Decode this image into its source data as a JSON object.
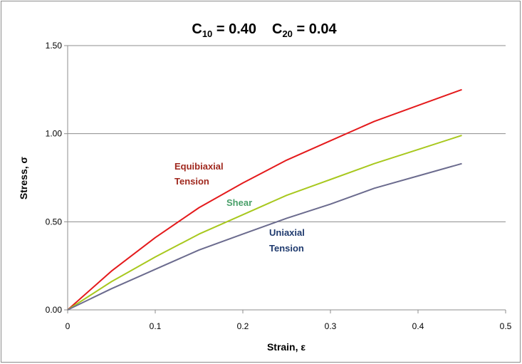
{
  "chart_data": {
    "type": "line",
    "title": {
      "c10_main": "C",
      "c10_sub": "10",
      "c10_value": " = 0.40",
      "c20_main": "C",
      "c20_sub": "20",
      "c20_value": " = 0.04"
    },
    "xlabel": "Strain, ε",
    "ylabel": "Stress, σ",
    "xlim": [
      0,
      0.5
    ],
    "ylim": [
      0,
      1.5
    ],
    "x_ticks": [
      "0",
      "0.1",
      "0.2",
      "0.3",
      "0.4",
      "0.5"
    ],
    "y_ticks": [
      "0.00",
      "0.50",
      "1.00",
      "1.50"
    ],
    "grid": "horizontal",
    "x": [
      0,
      0.05,
      0.1,
      0.15,
      0.2,
      0.25,
      0.3,
      0.35,
      0.4,
      0.45
    ],
    "series": [
      {
        "name": "Equibiaxial Tension",
        "color": "#e41a1c",
        "values": [
          0,
          0.22,
          0.41,
          0.58,
          0.72,
          0.85,
          0.96,
          1.07,
          1.16,
          1.25
        ]
      },
      {
        "name": "Shear",
        "color": "#a8c81e",
        "values": [
          0,
          0.16,
          0.3,
          0.43,
          0.54,
          0.65,
          0.74,
          0.83,
          0.91,
          0.99
        ]
      },
      {
        "name": "Uniaxial Tension",
        "color": "#6b6b8e",
        "values": [
          0,
          0.12,
          0.23,
          0.34,
          0.43,
          0.52,
          0.6,
          0.69,
          0.76,
          0.83
        ]
      }
    ],
    "annotations": {
      "equibiaxial_line1": "Equibiaxial",
      "equibiaxial_line2": "Tension",
      "equibiaxial_color": "#a0281e",
      "shear": "Shear",
      "shear_color": "#4aa06a",
      "uniaxial_line1": "Uniaxial",
      "uniaxial_line2": "Tension",
      "uniaxial_color": "#1f3a6e"
    }
  }
}
